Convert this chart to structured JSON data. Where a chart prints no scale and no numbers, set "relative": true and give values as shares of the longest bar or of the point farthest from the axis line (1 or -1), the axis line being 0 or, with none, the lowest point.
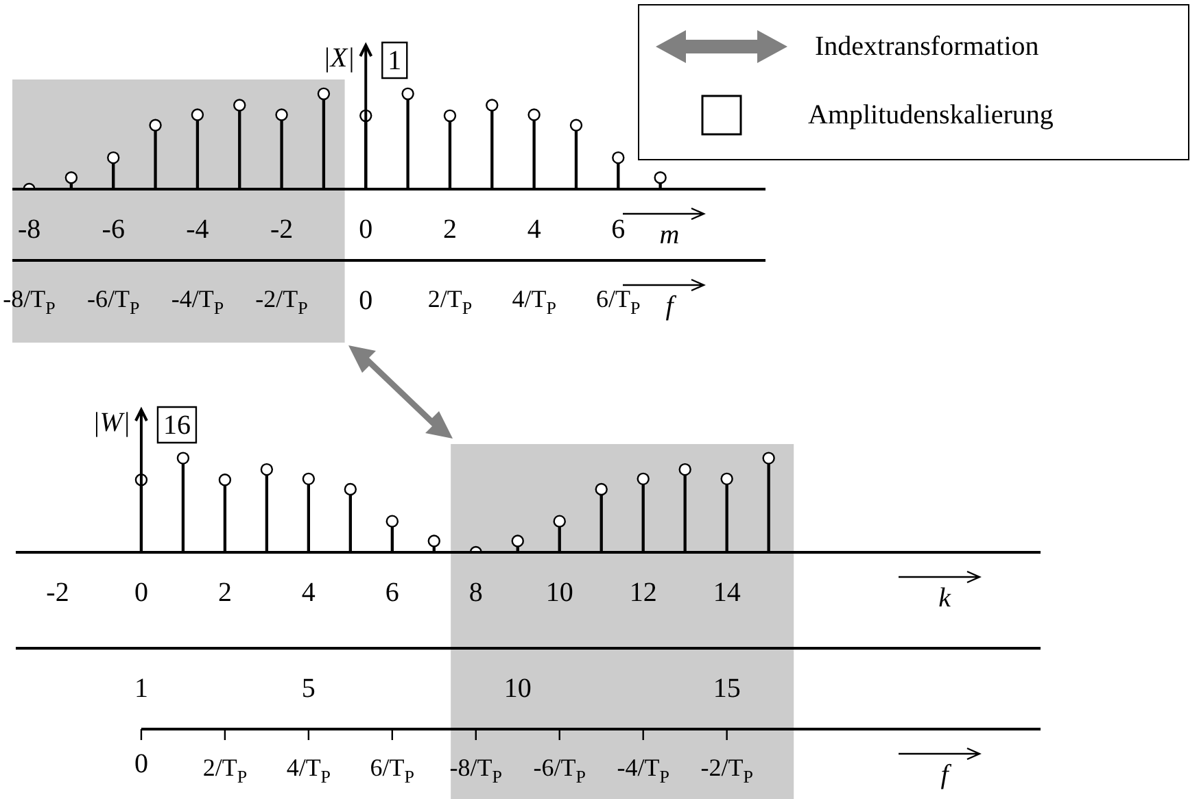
{
  "chart_data": [
    {
      "type": "lollipop",
      "relative": true,
      "marker": "circle",
      "ylabel": "|X|",
      "xlabel": "m",
      "x2label": "f",
      "x": [
        -8,
        -7,
        -6,
        -5,
        -4,
        -3,
        -2,
        -1,
        0,
        1,
        2,
        3,
        4,
        5,
        6,
        7
      ],
      "series": [
        {
          "color": "#000000",
          "values": [
            0,
            0.12,
            0.33,
            0.67,
            0.78,
            0.88,
            0.78,
            1,
            0.77,
            1,
            0.77,
            0.88,
            0.78,
            0.67,
            0.33,
            0.12
          ]
        }
      ],
      "xlim": [
        -8.4,
        9.5
      ],
      "xticks": [
        -8,
        -6,
        -4,
        -2,
        0,
        2,
        4,
        6
      ],
      "x2lim": [
        -8.4,
        9.5
      ],
      "x2ticks": [
        {
          "value": -8,
          "label": "-8/T$_{P}$"
        },
        {
          "value": -6,
          "label": "-6/T$_{P}$"
        },
        {
          "value": -4,
          "label": "-4/T$_{P}$"
        },
        {
          "value": -2,
          "label": "-2/T$_{P}$"
        },
        0,
        {
          "value": 2,
          "label": "2/T$_{P}$"
        },
        {
          "value": 4,
          "label": "4/T$_{P}$"
        },
        {
          "value": 6,
          "label": "6/T$_{P}$"
        }
      ],
      "bands": [
        {
          "axis": "x",
          "from": -8.4,
          "to": -0.5,
          "color": "#cccccc"
        }
      ],
      "annotations": [
        "1",
        "Indextransformation",
        "Amplitudenskalierung"
      ]
    },
    {
      "type": "lollipop",
      "relative": true,
      "marker": "circle",
      "ylabel": "|W|",
      "xlabel": "k",
      "x": [
        0,
        1,
        2,
        3,
        4,
        5,
        6,
        7,
        8,
        9,
        10,
        11,
        12,
        13,
        14,
        15
      ],
      "series": [
        {
          "color": "#000000",
          "values": [
            0.77,
            1,
            0.77,
            0.88,
            0.78,
            0.67,
            0.33,
            0.12,
            0,
            0.12,
            0.33,
            0.67,
            0.78,
            0.88,
            0.78,
            1
          ]
        }
      ],
      "xlim": [
        -3,
        21.5
      ],
      "xticks": [
        -2,
        0,
        2,
        4,
        6,
        8,
        10,
        12,
        14
      ],
      "x2lim": [
        -2,
        22.5
      ],
      "x2ticks": [
        1,
        5,
        10,
        15
      ],
      "bands": [
        {
          "axis": "x",
          "from": 7.4,
          "to": 15.6,
          "color": "#cccccc"
        }
      ],
      "annotations": [
        "16",
        "f",
        {
          "text": "0",
          "x": 0
        },
        {
          "text": "2/T$_{P}$",
          "x": 2
        },
        {
          "text": "4/T$_{P}$",
          "x": 4
        },
        {
          "text": "6/T$_{P}$",
          "x": 6
        },
        {
          "text": "-8/T$_{P}$",
          "x": 8
        },
        {
          "text": "-6/T$_{P}$",
          "x": 10
        },
        {
          "text": "-4/T$_{P}$",
          "x": 12
        },
        {
          "text": "-2/T$_{P}$",
          "x": 14
        }
      ]
    }
  ]
}
